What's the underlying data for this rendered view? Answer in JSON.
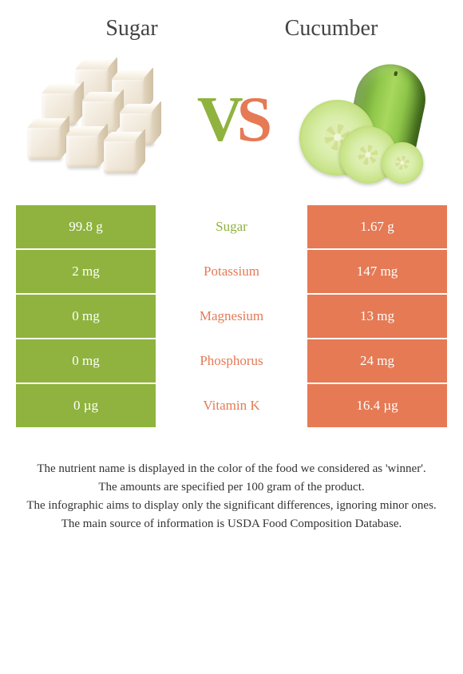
{
  "left_food": {
    "name": "Sugar",
    "color": "#8fb33e"
  },
  "right_food": {
    "name": "Cucumber",
    "color": "#e57a55"
  },
  "vs": {
    "v_color": "#8fb33e",
    "s_color": "#e57a55"
  },
  "background_color": "#ffffff",
  "row_border_color": "#ffffff",
  "text_color": "#333333",
  "cell_text_color": "#ffffff",
  "font_family": "Georgia, 'Times New Roman', serif",
  "title_fontsize": 28,
  "vs_fontsize": 80,
  "cell_fontsize": 17,
  "notes_fontsize": 15,
  "table": {
    "rows": [
      {
        "nutrient": "Sugar",
        "left": "99.8 g",
        "right": "1.67 g",
        "winner": "left"
      },
      {
        "nutrient": "Potassium",
        "left": "2 mg",
        "right": "147 mg",
        "winner": "right"
      },
      {
        "nutrient": "Magnesium",
        "left": "0 mg",
        "right": "13 mg",
        "winner": "right"
      },
      {
        "nutrient": "Phosphorus",
        "left": "0 mg",
        "right": "24 mg",
        "winner": "right"
      },
      {
        "nutrient": "Vitamin K",
        "left": "0 µg",
        "right": "16.4 µg",
        "winner": "right"
      }
    ]
  },
  "notes": [
    "The nutrient name is displayed in the color of the food we considered as 'winner'.",
    "The amounts are specified per 100 gram of the product.",
    "The infographic aims to display only the significant differences, ignoring minor ones.",
    "The main source of information is USDA Food Composition Database."
  ]
}
